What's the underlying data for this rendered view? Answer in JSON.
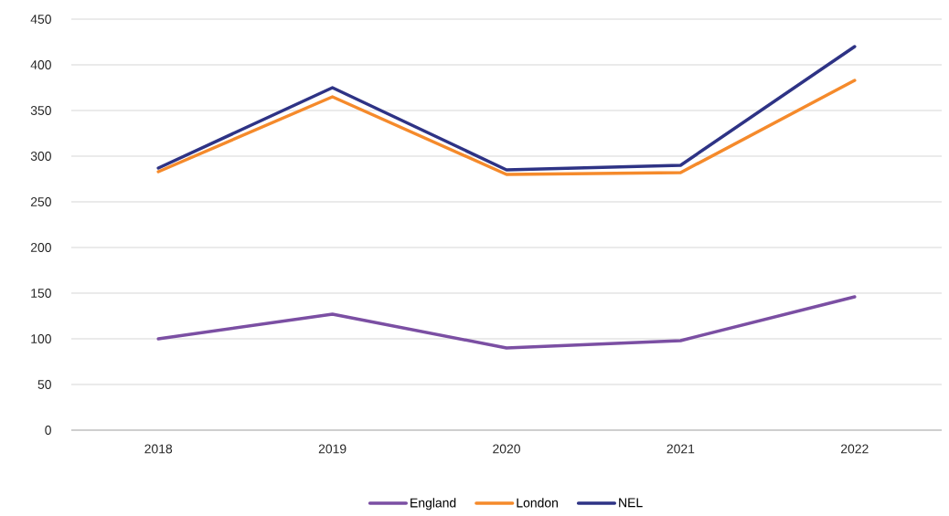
{
  "chart_data": {
    "type": "line",
    "categories": [
      "2018",
      "2019",
      "2020",
      "2021",
      "2022"
    ],
    "series": [
      {
        "name": "England",
        "color": "#7b4fa3",
        "values": [
          100,
          127,
          90,
          98,
          146
        ]
      },
      {
        "name": "London",
        "color": "#f58a2b",
        "values": [
          283,
          365,
          280,
          282,
          383
        ]
      },
      {
        "name": "NEL",
        "color": "#2e3385",
        "values": [
          287,
          375,
          285,
          290,
          420
        ]
      }
    ],
    "ylim": [
      0,
      450
    ],
    "yticks": [
      0,
      50,
      100,
      150,
      200,
      250,
      300,
      350,
      400,
      450
    ],
    "grid": "y",
    "legend": "bottom",
    "marker": "none",
    "line_style": "solid"
  }
}
